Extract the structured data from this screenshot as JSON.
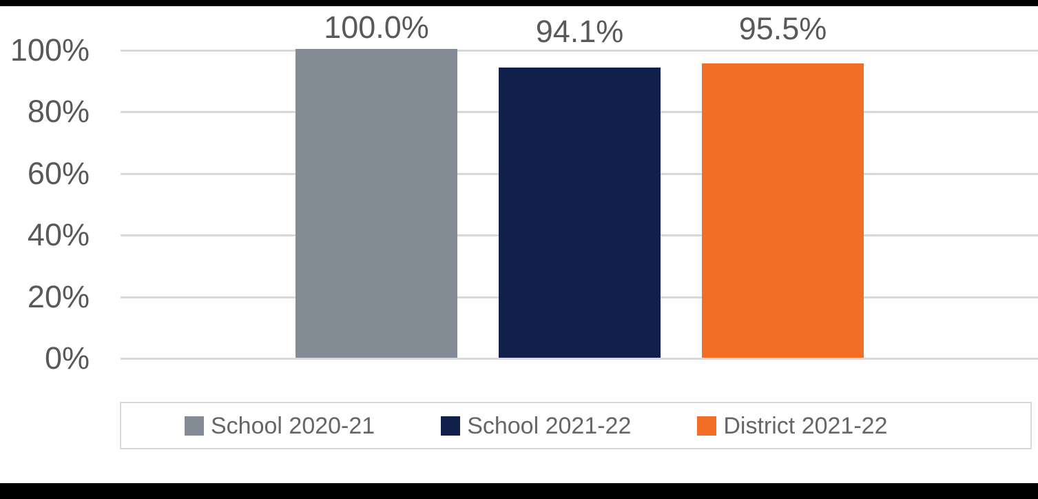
{
  "chart_data": {
    "type": "bar",
    "title": "",
    "xlabel": "",
    "ylabel": "",
    "categories": [
      "School 2020-21",
      "School 2021-22",
      "District 2021-22"
    ],
    "values": [
      100.0,
      94.1,
      95.5
    ],
    "value_labels": [
      "100.0%",
      "94.1%",
      "95.5%"
    ],
    "series_colors": [
      "#838B95",
      "#11204A",
      "#F26E26"
    ],
    "ylim": [
      0,
      100
    ],
    "grid": true,
    "y_ticks": [
      {
        "value": 100,
        "label": "100%"
      },
      {
        "value": 80,
        "label": "80%"
      },
      {
        "value": 60,
        "label": "60%"
      },
      {
        "value": 40,
        "label": "40%"
      },
      {
        "value": 20,
        "label": "20%"
      },
      {
        "value": 0,
        "label": "0%"
      }
    ],
    "legend_position": "bottom",
    "legend": [
      {
        "label": "School 2020-21",
        "color": "#838B95"
      },
      {
        "label": "School 2021-22",
        "color": "#11204A"
      },
      {
        "label": "District 2021-22",
        "color": "#F26E26"
      }
    ]
  },
  "colors": {
    "background": "#FFFFFF",
    "edge_strips": "#000000",
    "gridline": "#D9D9D9",
    "axis_text": "#595959",
    "data_label_text": "#595959",
    "legend_text": "#666666",
    "legend_border": "#D9D9D9"
  }
}
